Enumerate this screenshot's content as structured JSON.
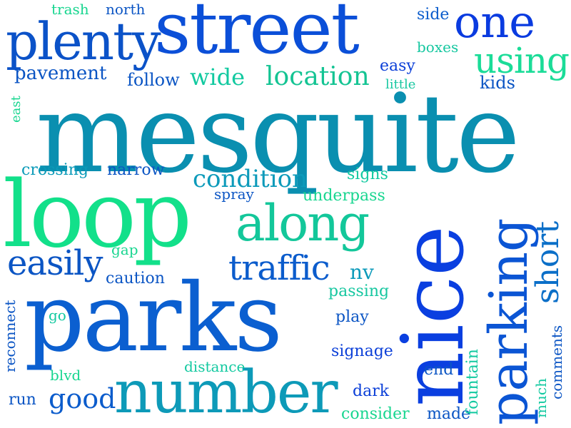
{
  "words": [
    {
      "id": "mesquite",
      "text": "mesquite",
      "color": "#0a8fb0"
    },
    {
      "id": "parks",
      "text": "parks",
      "color": "#0b5fd0"
    },
    {
      "id": "nice",
      "text": "nice",
      "color": "#0a3fe0"
    },
    {
      "id": "loop",
      "text": "loop",
      "color": "#12e08a"
    },
    {
      "id": "street",
      "text": "street",
      "color": "#0b4fd8"
    },
    {
      "id": "number",
      "text": "number",
      "color": "#0d9ab8"
    },
    {
      "id": "parking",
      "text": "parking",
      "color": "#0b55d4"
    },
    {
      "id": "plenty",
      "text": "plenty",
      "color": "#0b52c8"
    },
    {
      "id": "along",
      "text": "along",
      "color": "#13c79a"
    },
    {
      "id": "one",
      "text": "one",
      "color": "#0a3be0"
    },
    {
      "id": "using",
      "text": "using",
      "color": "#1bdc98"
    },
    {
      "id": "easily",
      "text": "easily",
      "color": "#0b55c4"
    },
    {
      "id": "traffic",
      "text": "traffic",
      "color": "#0b5ccc"
    },
    {
      "id": "condition",
      "text": "condition",
      "color": "#0c9aba"
    },
    {
      "id": "location",
      "text": "location",
      "color": "#14c493"
    },
    {
      "id": "short",
      "text": "short",
      "color": "#0b6fc8"
    },
    {
      "id": "wide",
      "text": "wide",
      "color": "#12c9a0"
    },
    {
      "id": "good",
      "text": "good",
      "color": "#0b5ccc"
    },
    {
      "id": "pavement",
      "text": "pavement",
      "color": "#0b55c4"
    },
    {
      "id": "follow",
      "text": "follow",
      "color": "#0b55c4"
    },
    {
      "id": "crossing",
      "text": "crossing",
      "color": "#0a9ab8"
    },
    {
      "id": "narrow",
      "text": "narrow",
      "color": "#0b55c4"
    },
    {
      "id": "trash",
      "text": "trash",
      "color": "#19d690"
    },
    {
      "id": "north",
      "text": "north",
      "color": "#0b55c4"
    },
    {
      "id": "side",
      "text": "side",
      "color": "#0b5ccc"
    },
    {
      "id": "boxes",
      "text": "boxes",
      "color": "#16c7a0"
    },
    {
      "id": "easy",
      "text": "easy",
      "color": "#0b3fd8"
    },
    {
      "id": "little",
      "text": "little",
      "color": "#16c7a0"
    },
    {
      "id": "kids",
      "text": "kids",
      "color": "#0b55c4"
    },
    {
      "id": "east",
      "text": "east",
      "color": "#19d690"
    },
    {
      "id": "signs",
      "text": "signs",
      "color": "#12c9a0"
    },
    {
      "id": "spray",
      "text": "spray",
      "color": "#0b55c4"
    },
    {
      "id": "underpass",
      "text": "underpass",
      "color": "#19d690"
    },
    {
      "id": "nv",
      "text": "nv",
      "color": "#0c9aba"
    },
    {
      "id": "passing",
      "text": "passing",
      "color": "#16c7a0"
    },
    {
      "id": "gap",
      "text": "gap",
      "color": "#19d690"
    },
    {
      "id": "caution",
      "text": "caution",
      "color": "#0b55c4"
    },
    {
      "id": "play",
      "text": "play",
      "color": "#0b55c4"
    },
    {
      "id": "go",
      "text": "go",
      "color": "#12c9a0"
    },
    {
      "id": "reconnect",
      "text": "reconnect",
      "color": "#0b55c4"
    },
    {
      "id": "signage",
      "text": "signage",
      "color": "#0b3fd8"
    },
    {
      "id": "distance",
      "text": "distance",
      "color": "#12c9a0"
    },
    {
      "id": "blvd",
      "text": "blvd",
      "color": "#19d690"
    },
    {
      "id": "end",
      "text": "end",
      "color": "#0b55c4"
    },
    {
      "id": "run",
      "text": "run",
      "color": "#0b55c4"
    },
    {
      "id": "dark",
      "text": "dark",
      "color": "#0b3fd8"
    },
    {
      "id": "consider",
      "text": "consider",
      "color": "#19d690"
    },
    {
      "id": "made",
      "text": "made",
      "color": "#0b55c4"
    },
    {
      "id": "fountain",
      "text": "fountain",
      "color": "#12c9a0"
    },
    {
      "id": "much",
      "text": "much",
      "color": "#12c9a0"
    },
    {
      "id": "comments",
      "text": "comments",
      "color": "#0b55c4"
    }
  ]
}
